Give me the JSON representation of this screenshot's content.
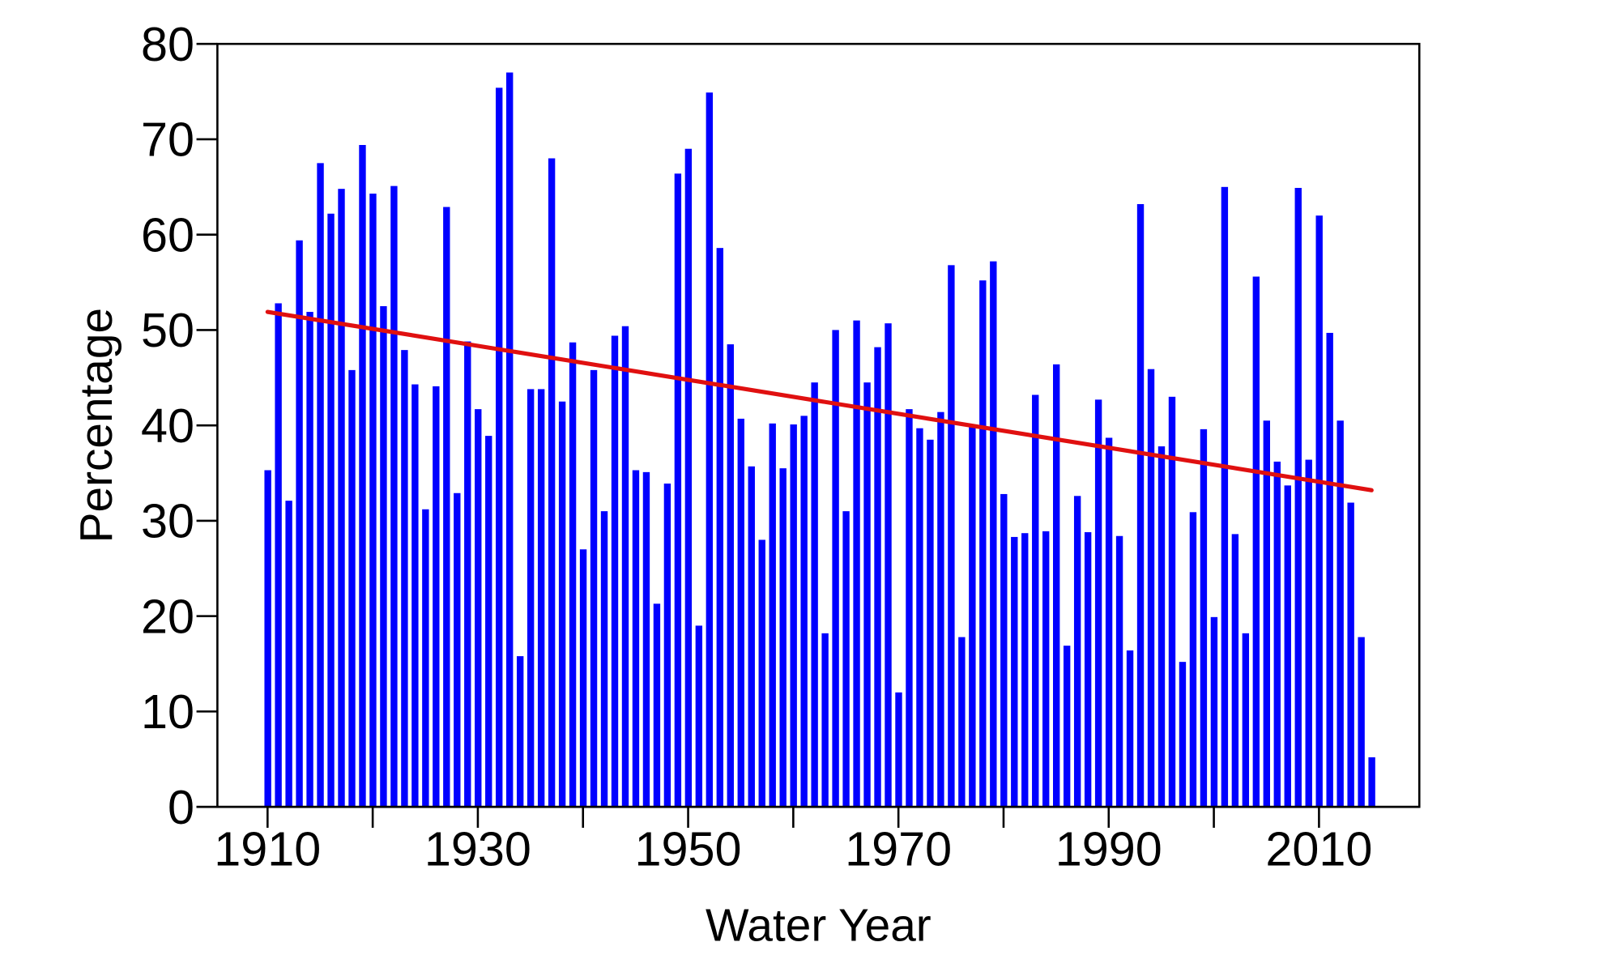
{
  "chart_data": {
    "type": "bar",
    "title": "",
    "xlabel": "Water Year",
    "ylabel": "Percentage",
    "xlim": [
      1905,
      2020
    ],
    "ylim": [
      0,
      80
    ],
    "grid": false,
    "bar_color": "#0000ff",
    "trend_color": "#e01010",
    "x_tick_labels": [
      "1910",
      "1930",
      "1950",
      "1970",
      "1990",
      "2010"
    ],
    "x_minor_ticks": [
      1920,
      1940,
      1960,
      1980,
      2000
    ],
    "y_tick_labels": [
      "0",
      "10",
      "20",
      "30",
      "40",
      "50",
      "60",
      "70",
      "80"
    ],
    "x": [
      1910,
      1911,
      1912,
      1913,
      1914,
      1915,
      1916,
      1917,
      1918,
      1919,
      1920,
      1921,
      1922,
      1923,
      1924,
      1925,
      1926,
      1927,
      1928,
      1929,
      1930,
      1931,
      1932,
      1933,
      1934,
      1935,
      1936,
      1937,
      1938,
      1939,
      1940,
      1941,
      1942,
      1943,
      1944,
      1945,
      1946,
      1947,
      1948,
      1949,
      1950,
      1951,
      1952,
      1953,
      1954,
      1955,
      1956,
      1957,
      1958,
      1959,
      1960,
      1961,
      1962,
      1963,
      1964,
      1965,
      1966,
      1967,
      1968,
      1969,
      1970,
      1971,
      1972,
      1973,
      1974,
      1975,
      1976,
      1977,
      1978,
      1979,
      1980,
      1981,
      1982,
      1983,
      1984,
      1985,
      1986,
      1987,
      1988,
      1989,
      1990,
      1991,
      1992,
      1993,
      1994,
      1995,
      1996,
      1997,
      1998,
      1999,
      2000,
      2001,
      2002,
      2003,
      2004,
      2005,
      2006,
      2007,
      2008,
      2009,
      2010,
      2011,
      2012,
      2013,
      2014,
      2015
    ],
    "values": [
      35.3,
      52.8,
      32.1,
      59.4,
      51.9,
      67.5,
      62.2,
      64.8,
      45.8,
      69.4,
      64.3,
      52.5,
      65.1,
      47.9,
      44.3,
      31.2,
      44.1,
      62.9,
      32.9,
      48.8,
      41.7,
      38.9,
      75.4,
      77.0,
      15.8,
      43.8,
      43.8,
      68.0,
      42.5,
      48.7,
      27.0,
      45.8,
      31.0,
      49.4,
      50.4,
      35.3,
      35.1,
      21.3,
      33.9,
      66.4,
      69.0,
      19.0,
      74.9,
      58.6,
      48.5,
      40.7,
      35.7,
      28.0,
      40.2,
      35.5,
      40.1,
      41.0,
      44.5,
      18.2,
      50.0,
      31.0,
      51.0,
      44.5,
      48.2,
      50.7,
      12.0,
      41.7,
      39.7,
      38.5,
      41.4,
      56.8,
      17.8,
      39.8,
      55.2,
      57.2,
      32.8,
      28.3,
      28.7,
      43.2,
      28.9,
      46.4,
      16.9,
      32.6,
      28.8,
      42.7,
      38.7,
      28.4,
      16.4,
      63.2,
      45.9,
      37.8,
      43.0,
      15.2,
      30.9,
      39.6,
      19.9,
      65.0,
      28.6,
      18.2,
      55.6,
      40.5,
      36.2,
      33.7,
      64.9,
      36.4,
      62.0,
      49.7,
      40.5,
      31.9,
      17.8,
      5.2
    ],
    "trend_line": {
      "x": [
        1910,
        2015
      ],
      "y": [
        51.9,
        33.2
      ]
    }
  }
}
